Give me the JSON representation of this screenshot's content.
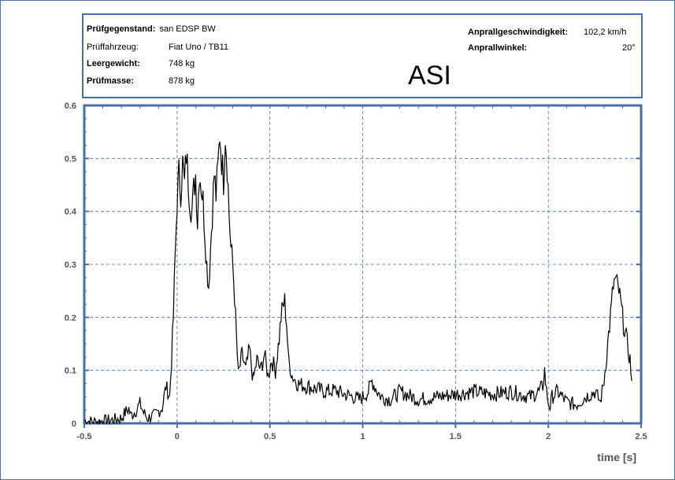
{
  "header": {
    "rows_left": [
      {
        "label": "Prüfgegenstand:",
        "value": "san EDSP BW"
      },
      {
        "label": "Prüffahrzeug:",
        "value": "Fiat Uno / TB11"
      },
      {
        "label": "Leergewicht:",
        "value": "748 kg"
      },
      {
        "label": "Prüfmasse:",
        "value": "878 kg"
      }
    ],
    "rows_right": [
      {
        "label": "Anprallgeschwindigkeit:",
        "value": "102,2 km/h"
      },
      {
        "label": "Anprallwinkel:",
        "value": "20°"
      }
    ],
    "title": "ASI"
  },
  "chart_data": {
    "type": "line",
    "title": "ASI",
    "xlabel": "time [s]",
    "ylabel": "",
    "xlim": [
      -0.5,
      2.5
    ],
    "ylim": [
      0,
      0.6
    ],
    "x_ticks": [
      "-0.5",
      "0",
      "0.5",
      "1",
      "1.5",
      "2",
      "2.5"
    ],
    "y_ticks": [
      "0",
      "0.1",
      "0.2",
      "0.3",
      "0.4",
      "0.5",
      "0.6"
    ],
    "grid": true,
    "colors": {
      "line": "#000000",
      "axis": "#4a6fa5",
      "grid": "#4a6fa5"
    },
    "series": [
      {
        "x": [
          -0.5,
          -0.45,
          -0.4,
          -0.35,
          -0.3,
          -0.28,
          -0.26,
          -0.25,
          -0.22,
          -0.2,
          -0.18,
          -0.16,
          -0.12,
          -0.08,
          -0.06,
          -0.04,
          -0.03,
          -0.02,
          -0.01,
          0.0,
          0.01,
          0.02,
          0.03,
          0.04,
          0.05,
          0.06,
          0.07,
          0.08,
          0.09,
          0.1,
          0.11,
          0.12,
          0.13,
          0.14,
          0.15,
          0.16,
          0.17,
          0.18,
          0.19,
          0.2,
          0.21,
          0.22,
          0.23,
          0.24,
          0.25,
          0.26,
          0.27,
          0.28,
          0.29,
          0.3,
          0.31,
          0.32,
          0.33,
          0.35,
          0.37,
          0.39,
          0.41,
          0.43,
          0.45,
          0.47,
          0.49,
          0.51,
          0.53,
          0.55,
          0.56,
          0.57,
          0.58,
          0.59,
          0.6,
          0.62,
          0.65,
          0.7,
          0.75,
          0.8,
          0.85,
          0.9,
          0.95,
          0.98,
          1.0,
          1.03,
          1.05,
          1.08,
          1.1,
          1.15,
          1.2,
          1.3,
          1.4,
          1.5,
          1.6,
          1.7,
          1.8,
          1.9,
          1.95,
          1.97,
          1.98,
          1.99,
          2.0,
          2.01,
          2.02,
          2.05,
          2.1,
          2.15,
          2.2,
          2.25,
          2.28,
          2.3,
          2.32,
          2.34,
          2.35,
          2.36,
          2.38,
          2.4,
          2.42,
          2.44,
          2.45
        ],
        "y": [
          0.005,
          0.003,
          0.004,
          0.006,
          0.01,
          0.02,
          0.028,
          0.015,
          0.025,
          0.037,
          0.02,
          0.01,
          0.015,
          0.03,
          0.07,
          0.05,
          0.12,
          0.2,
          0.32,
          0.42,
          0.47,
          0.44,
          0.49,
          0.45,
          0.51,
          0.46,
          0.42,
          0.4,
          0.44,
          0.47,
          0.38,
          0.48,
          0.45,
          0.42,
          0.36,
          0.3,
          0.26,
          0.33,
          0.4,
          0.47,
          0.43,
          0.48,
          0.55,
          0.5,
          0.46,
          0.55,
          0.49,
          0.4,
          0.33,
          0.3,
          0.24,
          0.16,
          0.09,
          0.13,
          0.1,
          0.14,
          0.08,
          0.12,
          0.1,
          0.13,
          0.09,
          0.12,
          0.1,
          0.16,
          0.2,
          0.22,
          0.23,
          0.19,
          0.12,
          0.09,
          0.075,
          0.07,
          0.065,
          0.06,
          0.062,
          0.055,
          0.05,
          0.045,
          0.05,
          0.06,
          0.08,
          0.06,
          0.05,
          0.045,
          0.06,
          0.045,
          0.05,
          0.055,
          0.06,
          0.055,
          0.06,
          0.05,
          0.06,
          0.07,
          0.1,
          0.06,
          0.04,
          0.03,
          0.05,
          0.06,
          0.04,
          0.035,
          0.05,
          0.06,
          0.04,
          0.08,
          0.15,
          0.22,
          0.26,
          0.27,
          0.25,
          0.2,
          0.16,
          0.12,
          0.08
        ]
      }
    ]
  }
}
